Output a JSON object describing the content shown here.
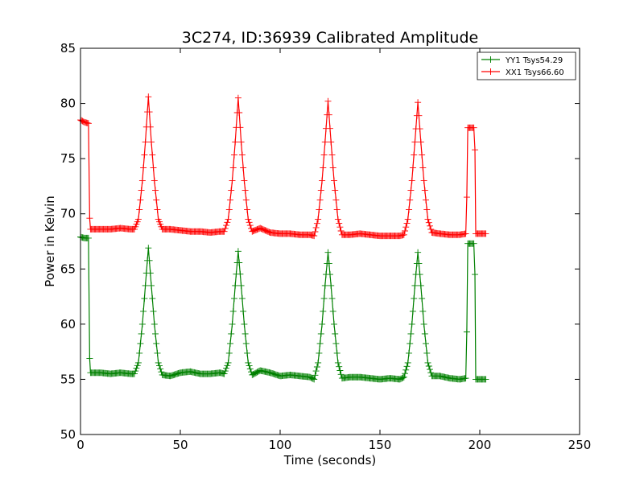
{
  "chart_data": {
    "type": "line",
    "title": "3C274, ID:36939 Calibrated Amplitude",
    "xlabel": "Time (seconds)",
    "ylabel": "Power in Kelvin",
    "xlim": [
      0,
      250
    ],
    "ylim": [
      50,
      85
    ],
    "xticks": [
      0,
      50,
      100,
      150,
      200,
      250
    ],
    "yticks": [
      50,
      55,
      60,
      65,
      70,
      75,
      80,
      85
    ],
    "grid": false,
    "legend": "top-right",
    "marker": "+",
    "series": [
      {
        "name": "YY1 Tsys54.29",
        "color": "#008000",
        "points": [
          [
            0,
            67.9
          ],
          [
            2,
            67.8
          ],
          [
            4,
            67.8
          ],
          [
            4.6,
            56.9
          ],
          [
            5,
            55.6
          ],
          [
            10,
            55.6
          ],
          [
            15,
            55.5
          ],
          [
            20,
            55.6
          ],
          [
            25,
            55.5
          ],
          [
            27,
            55.5
          ],
          [
            29,
            56.5
          ],
          [
            31,
            60
          ],
          [
            32.5,
            63.5
          ],
          [
            34,
            66.9
          ],
          [
            35.5,
            63.5
          ],
          [
            37,
            60
          ],
          [
            39,
            56.5
          ],
          [
            41,
            55.4
          ],
          [
            45,
            55.3
          ],
          [
            50,
            55.6
          ],
          [
            55,
            55.7
          ],
          [
            60,
            55.5
          ],
          [
            65,
            55.5
          ],
          [
            70,
            55.6
          ],
          [
            72,
            55.5
          ],
          [
            74,
            56.5
          ],
          [
            76,
            60
          ],
          [
            77.5,
            63.5
          ],
          [
            79,
            66.6
          ],
          [
            80.5,
            63.5
          ],
          [
            82,
            60
          ],
          [
            84,
            56.5
          ],
          [
            86,
            55.4
          ],
          [
            90,
            55.8
          ],
          [
            95,
            55.6
          ],
          [
            100,
            55.3
          ],
          [
            105,
            55.4
          ],
          [
            110,
            55.3
          ],
          [
            115,
            55.2
          ],
          [
            117,
            55
          ],
          [
            119,
            56.5
          ],
          [
            121,
            60
          ],
          [
            122.5,
            63.5
          ],
          [
            124,
            66.5
          ],
          [
            125.5,
            63.5
          ],
          [
            127,
            60
          ],
          [
            129,
            56.5
          ],
          [
            131,
            55.1
          ],
          [
            135,
            55.2
          ],
          [
            140,
            55.2
          ],
          [
            145,
            55.1
          ],
          [
            150,
            55
          ],
          [
            155,
            55.1
          ],
          [
            160,
            55
          ],
          [
            162,
            55.2
          ],
          [
            164,
            56.5
          ],
          [
            166,
            60
          ],
          [
            167.5,
            63.5
          ],
          [
            169,
            66.5
          ],
          [
            170.5,
            63.5
          ],
          [
            172,
            60
          ],
          [
            174,
            56.5
          ],
          [
            176,
            55.3
          ],
          [
            180,
            55.3
          ],
          [
            185,
            55.1
          ],
          [
            190,
            55
          ],
          [
            193,
            55.1
          ],
          [
            193.5,
            59.3
          ],
          [
            194,
            67.3
          ],
          [
            196,
            67.3
          ],
          [
            197,
            67.3
          ],
          [
            197.6,
            64.5
          ],
          [
            198,
            55
          ],
          [
            200,
            55
          ],
          [
            203,
            55
          ]
        ]
      },
      {
        "name": "XX1 Tsys66.60",
        "color": "#ff0000",
        "points": [
          [
            0,
            78.5
          ],
          [
            2,
            78.3
          ],
          [
            4,
            78.2
          ],
          [
            4.6,
            69.6
          ],
          [
            5,
            68.6
          ],
          [
            10,
            68.6
          ],
          [
            15,
            68.6
          ],
          [
            20,
            68.7
          ],
          [
            25,
            68.6
          ],
          [
            27,
            68.6
          ],
          [
            29,
            69.5
          ],
          [
            31,
            73
          ],
          [
            32.5,
            76.5
          ],
          [
            34,
            80.6
          ],
          [
            35.5,
            76.5
          ],
          [
            37,
            73
          ],
          [
            39,
            69.5
          ],
          [
            41,
            68.6
          ],
          [
            45,
            68.6
          ],
          [
            50,
            68.5
          ],
          [
            55,
            68.4
          ],
          [
            60,
            68.4
          ],
          [
            65,
            68.3
          ],
          [
            70,
            68.4
          ],
          [
            72,
            68.4
          ],
          [
            74,
            69.5
          ],
          [
            76,
            73
          ],
          [
            77.5,
            76.5
          ],
          [
            79,
            80.5
          ],
          [
            80.5,
            76.5
          ],
          [
            82,
            73
          ],
          [
            84,
            69.5
          ],
          [
            86,
            68.4
          ],
          [
            90,
            68.7
          ],
          [
            95,
            68.3
          ],
          [
            100,
            68.2
          ],
          [
            105,
            68.2
          ],
          [
            110,
            68.1
          ],
          [
            115,
            68.1
          ],
          [
            117,
            68
          ],
          [
            119,
            69.5
          ],
          [
            121,
            73
          ],
          [
            122.5,
            76.5
          ],
          [
            124,
            80.2
          ],
          [
            125.5,
            76.5
          ],
          [
            127,
            73
          ],
          [
            129,
            69.5
          ],
          [
            131,
            68.1
          ],
          [
            135,
            68.1
          ],
          [
            140,
            68.2
          ],
          [
            145,
            68.1
          ],
          [
            150,
            68
          ],
          [
            155,
            68
          ],
          [
            160,
            68
          ],
          [
            162,
            68.1
          ],
          [
            164,
            69.5
          ],
          [
            166,
            73
          ],
          [
            167.5,
            76.5
          ],
          [
            169,
            80.1
          ],
          [
            170.5,
            76.5
          ],
          [
            172,
            73
          ],
          [
            174,
            69.5
          ],
          [
            176,
            68.3
          ],
          [
            180,
            68.2
          ],
          [
            185,
            68.1
          ],
          [
            190,
            68.1
          ],
          [
            193,
            68.2
          ],
          [
            193.5,
            71.5
          ],
          [
            194,
            77.8
          ],
          [
            196,
            77.8
          ],
          [
            197,
            77.8
          ],
          [
            197.6,
            75.8
          ],
          [
            198,
            68.2
          ],
          [
            200,
            68.2
          ],
          [
            203,
            68.2
          ]
        ]
      }
    ]
  }
}
